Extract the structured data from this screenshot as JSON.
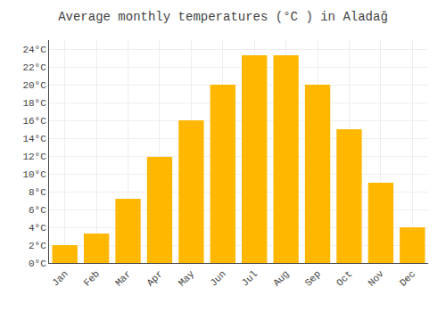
{
  "chart_data": {
    "type": "bar",
    "title": "Average monthly temperatures (°C ) in Aladağ",
    "categories": [
      "Jan",
      "Feb",
      "Mar",
      "Apr",
      "May",
      "Jun",
      "Jul",
      "Aug",
      "Sep",
      "Oct",
      "Nov",
      "Dec"
    ],
    "values": [
      2,
      3.3,
      7.2,
      11.9,
      16,
      20,
      23.3,
      23.3,
      20,
      15,
      9,
      4
    ],
    "color": "#FFB700",
    "ylim": [
      0,
      25
    ],
    "yticks": [
      {
        "value": 0,
        "label": "0°C"
      },
      {
        "value": 2,
        "label": "2°C"
      },
      {
        "value": 4,
        "label": "4°C"
      },
      {
        "value": 6,
        "label": "6°C"
      },
      {
        "value": 8,
        "label": "8°C"
      },
      {
        "value": 10,
        "label": "10°C"
      },
      {
        "value": 12,
        "label": "12°C"
      },
      {
        "value": 14,
        "label": "14°C"
      },
      {
        "value": 16,
        "label": "16°C"
      },
      {
        "value": 18,
        "label": "18°C"
      },
      {
        "value": 20,
        "label": "20°C"
      },
      {
        "value": 22,
        "label": "22°C"
      },
      {
        "value": 24,
        "label": "24°C"
      }
    ],
    "grid": true
  }
}
